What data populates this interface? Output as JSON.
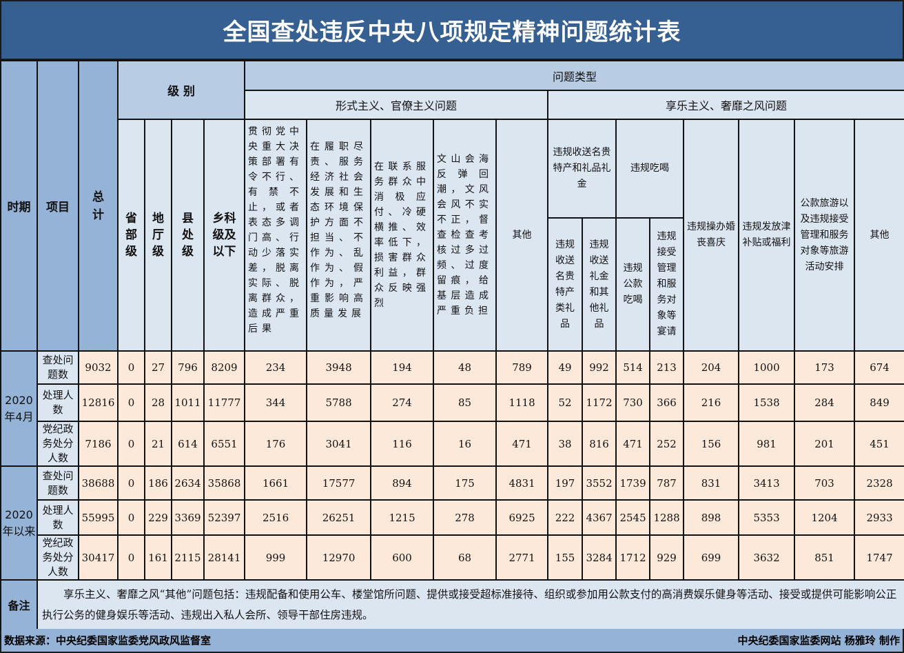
{
  "title": "全国查处违反中央八项规定精神问题统计表",
  "headers": {
    "period": "时期",
    "item": "项目",
    "total": "总计",
    "level": "级 别",
    "levels": [
      "省部级",
      "地厅级",
      "县处级",
      "乡科级及以下"
    ],
    "problem_types": "问题类型",
    "formalism": "形式主义、官僚主义问题",
    "hedonism": "享乐主义、奢靡之风问题",
    "formalism_cols": [
      "贯彻党中央重大决策部署有令不行、有禁不止，或者表态多调门高、行动少落实差，脱离实际、脱离群众，造成严重后果",
      "在履职尽责、服务经济社会发展和生态环境保护方面不担当、不作为、乱作为、假作为，严重影响高质量发展",
      "在联系服务群众中消极应付、冷硬横推、效率低下，损害群众利益，群众反映强烈",
      "文山会海反弹回潮，文风会风不实不正，督查检查考核过多过频、过度留痕，给基层造成严重负担",
      "其他"
    ],
    "gifts": "违规收送名贵特产和礼品礼金",
    "gifts_sub": [
      "违规收送名贵特产类礼品",
      "违规收送礼金和其他礼品"
    ],
    "dining": "违规吃喝",
    "dining_sub": [
      "违规公款吃喝",
      "违规接受管理和服务对象等宴请"
    ],
    "hedonism_cols": [
      "违规操办婚丧喜庆",
      "违规发放津补贴或福利",
      "公款旅游以及违规接受管理和服务对象等旅游活动安排",
      "其他"
    ]
  },
  "groups": [
    {
      "period": "2020年4月",
      "rows": [
        {
          "item": "查处问题数",
          "values": [
            "9032",
            "0",
            "27",
            "796",
            "8209",
            "234",
            "3948",
            "194",
            "48",
            "789",
            "49",
            "992",
            "514",
            "213",
            "204",
            "1000",
            "173",
            "674"
          ]
        },
        {
          "item": "处理人数",
          "values": [
            "12816",
            "0",
            "28",
            "1011",
            "11777",
            "344",
            "5788",
            "274",
            "85",
            "1118",
            "52",
            "1172",
            "730",
            "366",
            "216",
            "1538",
            "284",
            "849"
          ]
        },
        {
          "item": "党纪政务处分人数",
          "values": [
            "7186",
            "0",
            "21",
            "614",
            "6551",
            "176",
            "3041",
            "116",
            "16",
            "471",
            "38",
            "816",
            "471",
            "252",
            "156",
            "981",
            "201",
            "451"
          ]
        }
      ]
    },
    {
      "period": "2020年以来",
      "rows": [
        {
          "item": "查处问题数",
          "values": [
            "38688",
            "0",
            "186",
            "2634",
            "35868",
            "1661",
            "17577",
            "894",
            "175",
            "4831",
            "197",
            "3552",
            "1739",
            "787",
            "831",
            "3413",
            "703",
            "2328"
          ]
        },
        {
          "item": "处理人数",
          "values": [
            "55995",
            "0",
            "229",
            "3369",
            "52397",
            "2516",
            "26251",
            "1215",
            "278",
            "6925",
            "222",
            "4367",
            "2545",
            "1288",
            "898",
            "5353",
            "1204",
            "2933"
          ]
        },
        {
          "item": "党纪政务处分人数",
          "values": [
            "30417",
            "0",
            "161",
            "2115",
            "28141",
            "999",
            "12970",
            "600",
            "68",
            "2771",
            "155",
            "3284",
            "1712",
            "929",
            "699",
            "3632",
            "851",
            "1747"
          ]
        }
      ]
    }
  ],
  "note": {
    "label": "备注",
    "text": "享乐主义、奢靡之风“其他”问题包括：违规配备和使用公车、楼堂馆所问题、提供或接受超标准接待、组织或参加用公款支付的高消费娱乐健身等活动、接受或提供可能影响公正执行公务的健身娱乐等活动、违规出入私人会所、领导干部住房违规。"
  },
  "footer": {
    "source": "数据来源：中央纪委国家监委党风政风监督室",
    "credit": "中央纪委国家监委网站 杨雅玲 制作"
  },
  "colors": {
    "title_bg": "#366092",
    "header_bg": "#dce6f1",
    "side_bg": "#95b3d7",
    "data_bg": "#fde9d9"
  }
}
